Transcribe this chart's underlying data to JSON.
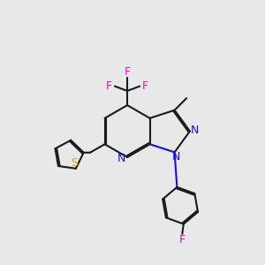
{
  "bg_color": "#e8e8e8",
  "bond_color": "#1a1a1a",
  "N_color": "#1010ee",
  "S_color": "#ccaa00",
  "F_color": "#dd10aa",
  "bond_width": 1.5,
  "dbo": 0.055,
  "figsize": [
    3.0,
    3.0
  ],
  "dpi": 100,
  "xlim": [
    0,
    10
  ],
  "ylim": [
    0,
    10
  ]
}
